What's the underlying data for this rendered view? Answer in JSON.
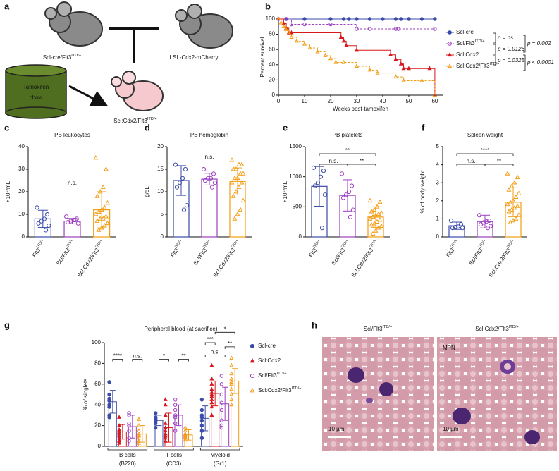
{
  "panel_labels": [
    "a",
    "b",
    "c",
    "d",
    "e",
    "f",
    "g",
    "h"
  ],
  "diagram": {
    "parent_1": {
      "text": "Scl-cre/Flt3",
      "sup": "ITD/+"
    },
    "parent_2": "LSL-Cdx2-mCherry",
    "treatment": [
      "Tamoxifen",
      "chow"
    ],
    "offspring": {
      "text": "Scl:Cdx2/Flt3",
      "sup": "ITD/+"
    }
  },
  "chart_data": [
    {
      "type": "line",
      "step": true,
      "xlabel": "Weeks post-tamoxifen",
      "ylabel": "Percent survival",
      "xlim": [
        0,
        63
      ],
      "xticks": [
        0,
        10,
        20,
        30,
        40,
        50,
        60
      ],
      "ylim": [
        0,
        100
      ],
      "yticks": [
        0,
        20,
        40,
        60,
        80,
        100
      ],
      "series": [
        {
          "name": "Scl-cre",
          "color": "#3b4ba8",
          "marker": "circle",
          "filled": true,
          "dashed": false,
          "x": [
            0,
            3,
            10,
            20,
            25,
            27,
            30,
            35,
            40,
            45,
            47,
            50,
            55,
            60
          ],
          "values": [
            100,
            100,
            100,
            100,
            100,
            100,
            100,
            100,
            100,
            100,
            100,
            100,
            100,
            100
          ]
        },
        {
          "name": {
            "text": "Scl/Flt3",
            "sup": "ITD/+"
          },
          "color": "#9c3fbf",
          "marker": "circle",
          "filled": false,
          "dashed": true,
          "x": [
            0,
            3,
            5,
            10,
            20,
            30,
            35,
            45,
            46,
            60
          ],
          "values": [
            100,
            100,
            93,
            93,
            93,
            87,
            87,
            87,
            87,
            87
          ]
        },
        {
          "name": "Scl:Cdx2",
          "color": "#d7191c",
          "marker": "triangle",
          "filled": true,
          "dashed": false,
          "x": [
            0,
            2,
            3,
            4,
            5,
            24,
            25,
            26,
            30,
            43,
            45,
            47,
            48,
            50,
            58,
            60
          ],
          "values": [
            100,
            94,
            88,
            82,
            82,
            76,
            71,
            65,
            59,
            53,
            47,
            41,
            35,
            35,
            35,
            0
          ]
        },
        {
          "name": {
            "text": "Scl:Cdx2/Flt3",
            "sup": "ITD/+"
          },
          "color": "#f39c12",
          "marker": "triangle",
          "filled": false,
          "dashed": true,
          "x": [
            0,
            1,
            2,
            3,
            4,
            5,
            7,
            10,
            12,
            15,
            18,
            20,
            22,
            25,
            30,
            35,
            38,
            45,
            48,
            55,
            60
          ],
          "values": [
            100,
            95,
            90,
            86,
            81,
            76,
            71,
            67,
            62,
            57,
            52,
            48,
            43,
            43,
            38,
            33,
            29,
            24,
            19,
            19,
            0
          ]
        }
      ],
      "annotations": [
        "p = ns",
        "p = 0.0126",
        "p = 0.0325",
        "p = 0.002",
        "p < 0.0001"
      ]
    },
    {
      "type": "bar",
      "title": "PB leukocytes",
      "ylabel": "×10⁶/mL",
      "ylim": [
        0,
        40
      ],
      "yticks": [
        0,
        10,
        20,
        30,
        40
      ],
      "categories": [
        {
          "text": "Flt3",
          "sup": "ITD/+"
        },
        {
          "text": "Scl/Flt3",
          "sup": "ITD/+"
        },
        {
          "text": "Scl:Cdx2/Flt3",
          "sup": "ITD/+"
        }
      ],
      "colors": [
        "#3b4ba8",
        "#9c3fbf",
        "#f39c12"
      ],
      "markers": [
        "circle",
        "circle",
        "triangle"
      ],
      "values": [
        8,
        7,
        12
      ],
      "errors": [
        3.8,
        1.2,
        8
      ],
      "points": [
        [
          13,
          10,
          8,
          7,
          6,
          5,
          3
        ],
        [
          9,
          8,
          7.5,
          7,
          6.5,
          6,
          7.5
        ],
        [
          35,
          30,
          22,
          20,
          18,
          15,
          13,
          12,
          11,
          10,
          9,
          8,
          8,
          7,
          6,
          5,
          4,
          3
        ]
      ],
      "annotations": [
        "n.s."
      ]
    },
    {
      "type": "bar",
      "title": "PB hemoglobin",
      "ylabel": "g/dL",
      "ylim": [
        0,
        20
      ],
      "yticks": [
        0,
        5,
        10,
        15,
        20
      ],
      "categories": [
        {
          "text": "Flt3",
          "sup": "ITD/+"
        },
        {
          "text": "Scl/Flt3",
          "sup": "ITD/+"
        },
        {
          "text": "Scl:Cdx2/Flt3",
          "sup": "ITD/+"
        }
      ],
      "colors": [
        "#3b4ba8",
        "#9c3fbf",
        "#f39c12"
      ],
      "markers": [
        "circle",
        "circle",
        "triangle"
      ],
      "values": [
        12.5,
        12.8,
        12.3
      ],
      "errors": [
        3.3,
        1.3,
        3
      ],
      "points": [
        [
          16,
          15,
          13,
          12,
          11,
          7,
          6
        ],
        [
          15,
          14,
          13,
          13,
          12.5,
          12,
          11
        ],
        [
          17,
          16,
          16,
          15,
          15,
          14,
          14,
          13,
          13,
          12,
          12,
          11,
          10,
          9,
          8,
          6,
          5,
          4
        ]
      ],
      "annotations": [
        "n.s."
      ]
    },
    {
      "type": "bar",
      "title": "PB platelets",
      "ylabel": "×10⁶/mL",
      "ylim": [
        0,
        1500
      ],
      "yticks": [
        0,
        500,
        1000,
        1500
      ],
      "categories": [
        {
          "text": "Flt3",
          "sup": "ITD/+"
        },
        {
          "text": "Scl/Flt3",
          "sup": "ITD/+"
        },
        {
          "text": "Scl:Cdx2/Flt3",
          "sup": "ITD/+"
        }
      ],
      "colors": [
        "#3b4ba8",
        "#9c3fbf",
        "#f39c12"
      ],
      "markers": [
        "circle",
        "circle",
        "triangle"
      ],
      "values": [
        840,
        690,
        330
      ],
      "errors": [
        330,
        260,
        170
      ],
      "points": [
        [
          1150,
          1100,
          1000,
          900,
          850,
          700,
          150
        ],
        [
          1050,
          850,
          750,
          700,
          650,
          450,
          330
        ],
        [
          600,
          580,
          500,
          450,
          420,
          400,
          380,
          350,
          330,
          300,
          280,
          250,
          220,
          200,
          180,
          150,
          100,
          50
        ]
      ],
      "annotations": [
        "n.s.",
        "**",
        "**"
      ]
    },
    {
      "type": "bar",
      "title": "Spleen weight",
      "ylabel": "% of body weight",
      "ylim": [
        0,
        5
      ],
      "yticks": [
        0,
        1,
        2,
        3,
        4,
        5
      ],
      "categories": [
        {
          "text": "Flt3",
          "sup": "ITD/+"
        },
        {
          "text": "Scl/Flt3",
          "sup": "ITD/+"
        },
        {
          "text": "Scl:Cdx2/Flt3",
          "sup": "ITD/+"
        }
      ],
      "colors": [
        "#3b4ba8",
        "#9c3fbf",
        "#f39c12"
      ],
      "markers": [
        "circle",
        "circle",
        "triangle"
      ],
      "values": [
        0.62,
        0.85,
        1.92
      ],
      "errors": [
        0.2,
        0.35,
        0.8
      ],
      "points": [
        [
          0.9,
          0.7,
          0.6,
          0.55,
          0.5,
          0.5
        ],
        [
          1.2,
          0.9,
          0.85,
          0.8,
          0.7,
          0.6,
          0.5
        ],
        [
          3.5,
          3.3,
          3.0,
          2.8,
          2.6,
          2.4,
          2.2,
          2.0,
          1.9,
          1.8,
          1.7,
          1.6,
          1.5,
          1.4,
          1.2,
          1.0,
          0.9,
          0.8
        ]
      ],
      "annotations": [
        "n.s.",
        "****",
        "**"
      ]
    },
    {
      "type": "grouped_bar",
      "title": "Peripheral blood (at sacrifice)",
      "ylabel": "% of singlets",
      "ylim": [
        0,
        100
      ],
      "yticks": [
        0,
        20,
        40,
        60,
        80,
        100
      ],
      "categories": [
        "B cells",
        "T cells",
        "Myeloid"
      ],
      "category_sublabels": [
        "(B220)",
        "(CD3)",
        "(Gr1)"
      ],
      "series": [
        {
          "name": "Scl-cre",
          "color": "#3b4ba8",
          "marker": "circle",
          "filled": true,
          "values": [
            43,
            25,
            27
          ],
          "errors": [
            11,
            5,
            12
          ],
          "points": [
            [
              62,
              50,
              46,
              44,
              40,
              38,
              30,
              28
            ],
            [
              32,
              28,
              27,
              26,
              25,
              24,
              22,
              18
            ],
            [
              45,
              35,
              30,
              28,
              25,
              20,
              15,
              8
            ]
          ]
        },
        {
          "name": "Scl:Cdx2",
          "color": "#d7191c",
          "marker": "triangle",
          "filled": true,
          "values": [
            14,
            18,
            51
          ],
          "errors": [
            7,
            14,
            12
          ],
          "points": [
            [
              28,
              20,
              16,
              14,
              12,
              10,
              8,
              6,
              5,
              3
            ],
            [
              45,
              40,
              30,
              22,
              18,
              15,
              12,
              10,
              8,
              5
            ],
            [
              78,
              65,
              60,
              55,
              52,
              50,
              48,
              45,
              42,
              38,
              30
            ]
          ]
        },
        {
          "name": {
            "text": "Scl/Flt3",
            "sup": "ITD/+"
          },
          "color": "#9c3fbf",
          "marker": "circle",
          "filled": false,
          "values": [
            19,
            30,
            41
          ],
          "errors": [
            11,
            10,
            16
          ],
          "points": [
            [
              32,
              30,
              22,
              20,
              15,
              8,
              5
            ],
            [
              45,
              40,
              35,
              30,
              28,
              22,
              15
            ],
            [
              68,
              60,
              50,
              42,
              35,
              25,
              20,
              18
            ]
          ]
        },
        {
          "name": {
            "text": "Scl:Cdx2/Flt3",
            "sup": "ITD/+"
          },
          "color": "#f39c12",
          "marker": "triangle",
          "filled": false,
          "values": [
            12,
            11,
            63
          ],
          "errors": [
            8,
            5,
            12
          ],
          "points": [
            [
              26,
              20,
              15,
              12,
              10,
              8,
              5,
              3
            ],
            [
              18,
              15,
              12,
              11,
              10,
              9,
              8,
              6
            ],
            [
              85,
              78,
              70,
              65,
              62,
              60,
              55,
              50,
              45,
              40
            ]
          ]
        }
      ],
      "annotations": [
        "****",
        "n.s.",
        "*",
        "**",
        "***",
        "n.s.",
        "**",
        "*"
      ]
    }
  ],
  "micrographs": [
    {
      "title": {
        "text": "Scl/Flt3",
        "sup": "ITD/+"
      },
      "scale_bar": "10 µm"
    },
    {
      "title": {
        "text": "Scl:Cdx2/Flt3",
        "sup": "ITD/+"
      },
      "label": "MPN",
      "scale_bar": "10 µm"
    }
  ]
}
